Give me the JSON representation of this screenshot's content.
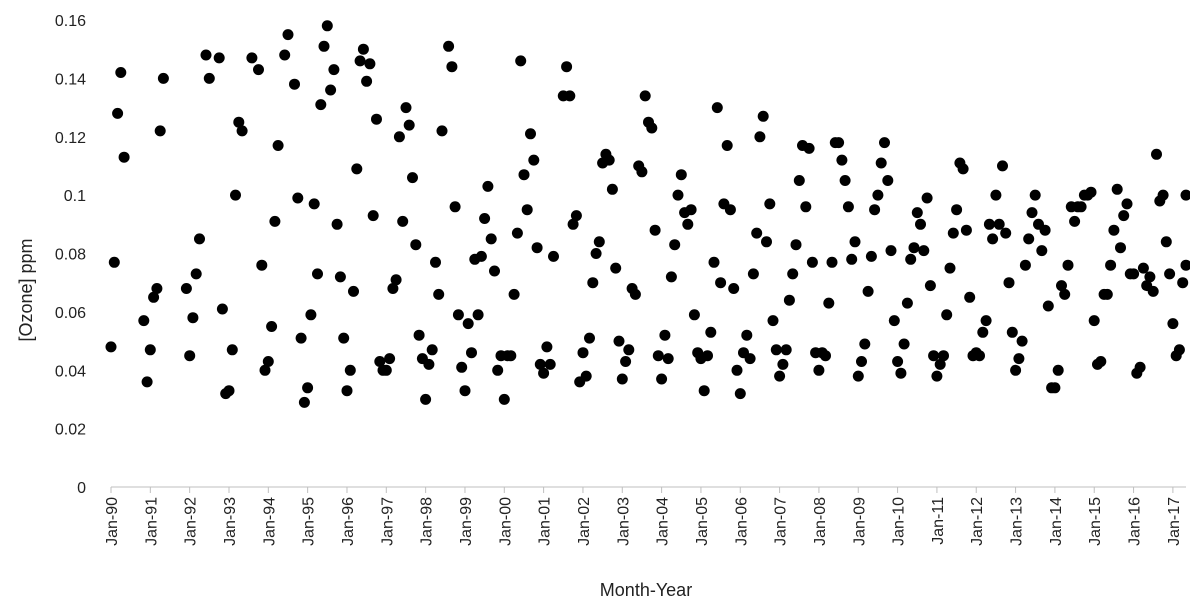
{
  "chart_data": {
    "type": "scatter",
    "xlabel": "Month-Year",
    "ylabel": "[Ozone] ppm",
    "ylim": [
      0,
      0.16
    ],
    "y_ticks": [
      "0",
      "0.02",
      "0.04",
      "0.06",
      "0.08",
      "0.1",
      "0.12",
      "0.14",
      "0.16"
    ],
    "x_ticks": [
      "Jan-90",
      "Jan-91",
      "Jan-92",
      "Jan-93",
      "Jan-94",
      "Jan-95",
      "Jan-96",
      "Jan-97",
      "Jan-98",
      "Jan-99",
      "Jan-00",
      "Jan-01",
      "Jan-02",
      "Jan-03",
      "Jan-04",
      "Jan-05",
      "Jan-06",
      "Jan-07",
      "Jan-08",
      "Jan-09",
      "Jan-10",
      "Jan-11",
      "Jan-12",
      "Jan-13",
      "Jan-14",
      "Jan-15",
      "Jan-16",
      "Jan-17"
    ],
    "xlim": [
      "1990-01",
      "2017-05"
    ],
    "grid": false,
    "marker_color": "#000000",
    "points": [
      [
        "1990-01",
        0.048
      ],
      [
        "1990-02",
        0.077
      ],
      [
        "1990-03",
        0.128
      ],
      [
        "1990-04",
        0.142
      ],
      [
        "1990-05",
        0.113
      ],
      [
        "1990-11",
        0.057
      ],
      [
        "1990-12",
        0.036
      ],
      [
        "1991-01",
        0.047
      ],
      [
        "1991-02",
        0.065
      ],
      [
        "1991-03",
        0.068
      ],
      [
        "1991-04",
        0.122
      ],
      [
        "1991-05",
        0.14
      ],
      [
        "1991-12",
        0.068
      ],
      [
        "1992-01",
        0.045
      ],
      [
        "1992-02",
        0.058
      ],
      [
        "1992-03",
        0.073
      ],
      [
        "1992-04",
        0.085
      ],
      [
        "1992-06",
        0.148
      ],
      [
        "1992-07",
        0.14
      ],
      [
        "1992-10",
        0.147
      ],
      [
        "1992-11",
        0.061
      ],
      [
        "1992-12",
        0.032
      ],
      [
        "1993-01",
        0.033
      ],
      [
        "1993-02",
        0.047
      ],
      [
        "1993-03",
        0.1
      ],
      [
        "1993-04",
        0.125
      ],
      [
        "1993-05",
        0.122
      ],
      [
        "1993-08",
        0.147
      ],
      [
        "1993-10",
        0.143
      ],
      [
        "1993-11",
        0.076
      ],
      [
        "1993-12",
        0.04
      ],
      [
        "1994-01",
        0.043
      ],
      [
        "1994-02",
        0.055
      ],
      [
        "1994-03",
        0.091
      ],
      [
        "1994-04",
        0.117
      ],
      [
        "1994-06",
        0.148
      ],
      [
        "1994-07",
        0.155
      ],
      [
        "1994-09",
        0.138
      ],
      [
        "1994-10",
        0.099
      ],
      [
        "1994-11",
        0.051
      ],
      [
        "1994-12",
        0.029
      ],
      [
        "1995-01",
        0.034
      ],
      [
        "1995-02",
        0.059
      ],
      [
        "1995-03",
        0.097
      ],
      [
        "1995-04",
        0.073
      ],
      [
        "1995-05",
        0.131
      ],
      [
        "1995-06",
        0.151
      ],
      [
        "1995-07",
        0.158
      ],
      [
        "1995-08",
        0.136
      ],
      [
        "1995-09",
        0.143
      ],
      [
        "1995-10",
        0.09
      ],
      [
        "1995-11",
        0.072
      ],
      [
        "1995-12",
        0.051
      ],
      [
        "1996-01",
        0.033
      ],
      [
        "1996-02",
        0.04
      ],
      [
        "1996-03",
        0.067
      ],
      [
        "1996-04",
        0.109
      ],
      [
        "1996-05",
        0.146
      ],
      [
        "1996-06",
        0.15
      ],
      [
        "1996-07",
        0.139
      ],
      [
        "1996-08",
        0.145
      ],
      [
        "1996-09",
        0.093
      ],
      [
        "1996-10",
        0.126
      ],
      [
        "1996-11",
        0.043
      ],
      [
        "1996-12",
        0.04
      ],
      [
        "1997-01",
        0.04
      ],
      [
        "1997-02",
        0.044
      ],
      [
        "1997-03",
        0.068
      ],
      [
        "1997-04",
        0.071
      ],
      [
        "1997-05",
        0.12
      ],
      [
        "1997-06",
        0.091
      ],
      [
        "1997-07",
        0.13
      ],
      [
        "1997-08",
        0.124
      ],
      [
        "1997-09",
        0.106
      ],
      [
        "1997-10",
        0.083
      ],
      [
        "1997-11",
        0.052
      ],
      [
        "1997-12",
        0.044
      ],
      [
        "1998-01",
        0.03
      ],
      [
        "1998-02",
        0.042
      ],
      [
        "1998-03",
        0.047
      ],
      [
        "1998-04",
        0.077
      ],
      [
        "1998-05",
        0.066
      ],
      [
        "1998-06",
        0.122
      ],
      [
        "1998-08",
        0.151
      ],
      [
        "1998-09",
        0.144
      ],
      [
        "1998-10",
        0.096
      ],
      [
        "1998-11",
        0.059
      ],
      [
        "1998-12",
        0.041
      ],
      [
        "1999-01",
        0.033
      ],
      [
        "1999-02",
        0.056
      ],
      [
        "1999-03",
        0.046
      ],
      [
        "1999-04",
        0.078
      ],
      [
        "1999-05",
        0.059
      ],
      [
        "1999-06",
        0.079
      ],
      [
        "1999-07",
        0.092
      ],
      [
        "1999-08",
        0.103
      ],
      [
        "1999-09",
        0.085
      ],
      [
        "1999-10",
        0.074
      ],
      [
        "1999-11",
        0.04
      ],
      [
        "1999-12",
        0.045
      ],
      [
        "2000-01",
        0.03
      ],
      [
        "2000-02",
        0.045
      ],
      [
        "2000-03",
        0.045
      ],
      [
        "2000-04",
        0.066
      ],
      [
        "2000-05",
        0.087
      ],
      [
        "2000-06",
        0.146
      ],
      [
        "2000-07",
        0.107
      ],
      [
        "2000-08",
        0.095
      ],
      [
        "2000-09",
        0.121
      ],
      [
        "2000-10",
        0.112
      ],
      [
        "2000-11",
        0.082
      ],
      [
        "2000-12",
        0.042
      ],
      [
        "2001-01",
        0.039
      ],
      [
        "2001-02",
        0.048
      ],
      [
        "2001-03",
        0.042
      ],
      [
        "2001-04",
        0.079
      ],
      [
        "2001-07",
        0.134
      ],
      [
        "2001-08",
        0.144
      ],
      [
        "2001-09",
        0.134
      ],
      [
        "2001-10",
        0.09
      ],
      [
        "2001-11",
        0.093
      ],
      [
        "2001-12",
        0.036
      ],
      [
        "2002-01",
        0.046
      ],
      [
        "2002-02",
        0.038
      ],
      [
        "2002-03",
        0.051
      ],
      [
        "2002-04",
        0.07
      ],
      [
        "2002-05",
        0.08
      ],
      [
        "2002-06",
        0.084
      ],
      [
        "2002-07",
        0.111
      ],
      [
        "2002-08",
        0.114
      ],
      [
        "2002-09",
        0.112
      ],
      [
        "2002-10",
        0.102
      ],
      [
        "2002-11",
        0.075
      ],
      [
        "2002-12",
        0.05
      ],
      [
        "2003-01",
        0.037
      ],
      [
        "2003-02",
        0.043
      ],
      [
        "2003-03",
        0.047
      ],
      [
        "2003-04",
        0.068
      ],
      [
        "2003-05",
        0.066
      ],
      [
        "2003-06",
        0.11
      ],
      [
        "2003-07",
        0.108
      ],
      [
        "2003-08",
        0.134
      ],
      [
        "2003-09",
        0.125
      ],
      [
        "2003-10",
        0.123
      ],
      [
        "2003-11",
        0.088
      ],
      [
        "2003-12",
        0.045
      ],
      [
        "2004-01",
        0.037
      ],
      [
        "2004-02",
        0.052
      ],
      [
        "2004-03",
        0.044
      ],
      [
        "2004-04",
        0.072
      ],
      [
        "2004-05",
        0.083
      ],
      [
        "2004-06",
        0.1
      ],
      [
        "2004-07",
        0.107
      ],
      [
        "2004-08",
        0.094
      ],
      [
        "2004-09",
        0.09
      ],
      [
        "2004-10",
        0.095
      ],
      [
        "2004-11",
        0.059
      ],
      [
        "2004-12",
        0.046
      ],
      [
        "2005-01",
        0.044
      ],
      [
        "2005-02",
        0.033
      ],
      [
        "2005-03",
        0.045
      ],
      [
        "2005-04",
        0.053
      ],
      [
        "2005-05",
        0.077
      ],
      [
        "2005-06",
        0.13
      ],
      [
        "2005-07",
        0.07
      ],
      [
        "2005-08",
        0.097
      ],
      [
        "2005-09",
        0.117
      ],
      [
        "2005-10",
        0.095
      ],
      [
        "2005-11",
        0.068
      ],
      [
        "2005-12",
        0.04
      ],
      [
        "2006-01",
        0.032
      ],
      [
        "2006-02",
        0.046
      ],
      [
        "2006-03",
        0.052
      ],
      [
        "2006-04",
        0.044
      ],
      [
        "2006-05",
        0.073
      ],
      [
        "2006-06",
        0.087
      ],
      [
        "2006-07",
        0.12
      ],
      [
        "2006-08",
        0.127
      ],
      [
        "2006-09",
        0.084
      ],
      [
        "2006-10",
        0.097
      ],
      [
        "2006-11",
        0.057
      ],
      [
        "2006-12",
        0.047
      ],
      [
        "2007-01",
        0.038
      ],
      [
        "2007-02",
        0.042
      ],
      [
        "2007-03",
        0.047
      ],
      [
        "2007-04",
        0.064
      ],
      [
        "2007-05",
        0.073
      ],
      [
        "2007-06",
        0.083
      ],
      [
        "2007-07",
        0.105
      ],
      [
        "2007-08",
        0.117
      ],
      [
        "2007-09",
        0.096
      ],
      [
        "2007-10",
        0.116
      ],
      [
        "2007-11",
        0.077
      ],
      [
        "2007-12",
        0.046
      ],
      [
        "2008-01",
        0.04
      ],
      [
        "2008-02",
        0.046
      ],
      [
        "2008-03",
        0.045
      ],
      [
        "2008-04",
        0.063
      ],
      [
        "2008-05",
        0.077
      ],
      [
        "2008-06",
        0.118
      ],
      [
        "2008-07",
        0.118
      ],
      [
        "2008-08",
        0.112
      ],
      [
        "2008-09",
        0.105
      ],
      [
        "2008-10",
        0.096
      ],
      [
        "2008-11",
        0.078
      ],
      [
        "2008-12",
        0.084
      ],
      [
        "2009-01",
        0.038
      ],
      [
        "2009-02",
        0.043
      ],
      [
        "2009-03",
        0.049
      ],
      [
        "2009-04",
        0.067
      ],
      [
        "2009-05",
        0.079
      ],
      [
        "2009-06",
        0.095
      ],
      [
        "2009-07",
        0.1
      ],
      [
        "2009-08",
        0.111
      ],
      [
        "2009-09",
        0.118
      ],
      [
        "2009-10",
        0.105
      ],
      [
        "2009-11",
        0.081
      ],
      [
        "2009-12",
        0.057
      ],
      [
        "2010-01",
        0.043
      ],
      [
        "2010-02",
        0.039
      ],
      [
        "2010-03",
        0.049
      ],
      [
        "2010-04",
        0.063
      ],
      [
        "2010-05",
        0.078
      ],
      [
        "2010-06",
        0.082
      ],
      [
        "2010-07",
        0.094
      ],
      [
        "2010-08",
        0.09
      ],
      [
        "2010-09",
        0.081
      ],
      [
        "2010-10",
        0.099
      ],
      [
        "2010-11",
        0.069
      ],
      [
        "2010-12",
        0.045
      ],
      [
        "2011-01",
        0.038
      ],
      [
        "2011-02",
        0.042
      ],
      [
        "2011-03",
        0.045
      ],
      [
        "2011-04",
        0.059
      ],
      [
        "2011-05",
        0.075
      ],
      [
        "2011-06",
        0.087
      ],
      [
        "2011-07",
        0.095
      ],
      [
        "2011-08",
        0.111
      ],
      [
        "2011-09",
        0.109
      ],
      [
        "2011-10",
        0.088
      ],
      [
        "2011-11",
        0.065
      ],
      [
        "2011-12",
        0.045
      ],
      [
        "2012-01",
        0.046
      ],
      [
        "2012-02",
        0.045
      ],
      [
        "2012-03",
        0.053
      ],
      [
        "2012-04",
        0.057
      ],
      [
        "2012-05",
        0.09
      ],
      [
        "2012-06",
        0.085
      ],
      [
        "2012-07",
        0.1
      ],
      [
        "2012-08",
        0.09
      ],
      [
        "2012-09",
        0.11
      ],
      [
        "2012-10",
        0.087
      ],
      [
        "2012-11",
        0.07
      ],
      [
        "2012-12",
        0.053
      ],
      [
        "2013-01",
        0.04
      ],
      [
        "2013-02",
        0.044
      ],
      [
        "2013-03",
        0.05
      ],
      [
        "2013-04",
        0.076
      ],
      [
        "2013-05",
        0.085
      ],
      [
        "2013-06",
        0.094
      ],
      [
        "2013-07",
        0.1
      ],
      [
        "2013-08",
        0.09
      ],
      [
        "2013-09",
        0.081
      ],
      [
        "2013-10",
        0.088
      ],
      [
        "2013-11",
        0.062
      ],
      [
        "2013-12",
        0.034
      ],
      [
        "2014-01",
        0.034
      ],
      [
        "2014-02",
        0.04
      ],
      [
        "2014-03",
        0.069
      ],
      [
        "2014-04",
        0.066
      ],
      [
        "2014-05",
        0.076
      ],
      [
        "2014-06",
        0.096
      ],
      [
        "2014-07",
        0.091
      ],
      [
        "2014-08",
        0.096
      ],
      [
        "2014-09",
        0.096
      ],
      [
        "2014-10",
        0.1
      ],
      [
        "2014-11",
        0.1
      ],
      [
        "2014-12",
        0.101
      ],
      [
        "2015-01",
        0.057
      ],
      [
        "2015-02",
        0.042
      ],
      [
        "2015-03",
        0.043
      ],
      [
        "2015-04",
        0.066
      ],
      [
        "2015-05",
        0.066
      ],
      [
        "2015-06",
        0.076
      ],
      [
        "2015-07",
        0.088
      ],
      [
        "2015-08",
        0.102
      ],
      [
        "2015-09",
        0.082
      ],
      [
        "2015-10",
        0.093
      ],
      [
        "2015-11",
        0.097
      ],
      [
        "2015-12",
        0.073
      ],
      [
        "2016-01",
        0.073
      ],
      [
        "2016-02",
        0.039
      ],
      [
        "2016-03",
        0.041
      ],
      [
        "2016-04",
        0.075
      ],
      [
        "2016-05",
        0.069
      ],
      [
        "2016-06",
        0.072
      ],
      [
        "2016-07",
        0.067
      ],
      [
        "2016-08",
        0.114
      ],
      [
        "2016-09",
        0.098
      ],
      [
        "2016-10",
        0.1
      ],
      [
        "2016-11",
        0.084
      ],
      [
        "2016-12",
        0.073
      ],
      [
        "2017-01",
        0.056
      ],
      [
        "2017-02",
        0.045
      ],
      [
        "2017-03",
        0.047
      ],
      [
        "2017-04",
        0.07
      ],
      [
        "2017-05",
        0.076
      ],
      [
        "2017-05",
        0.1
      ]
    ]
  }
}
